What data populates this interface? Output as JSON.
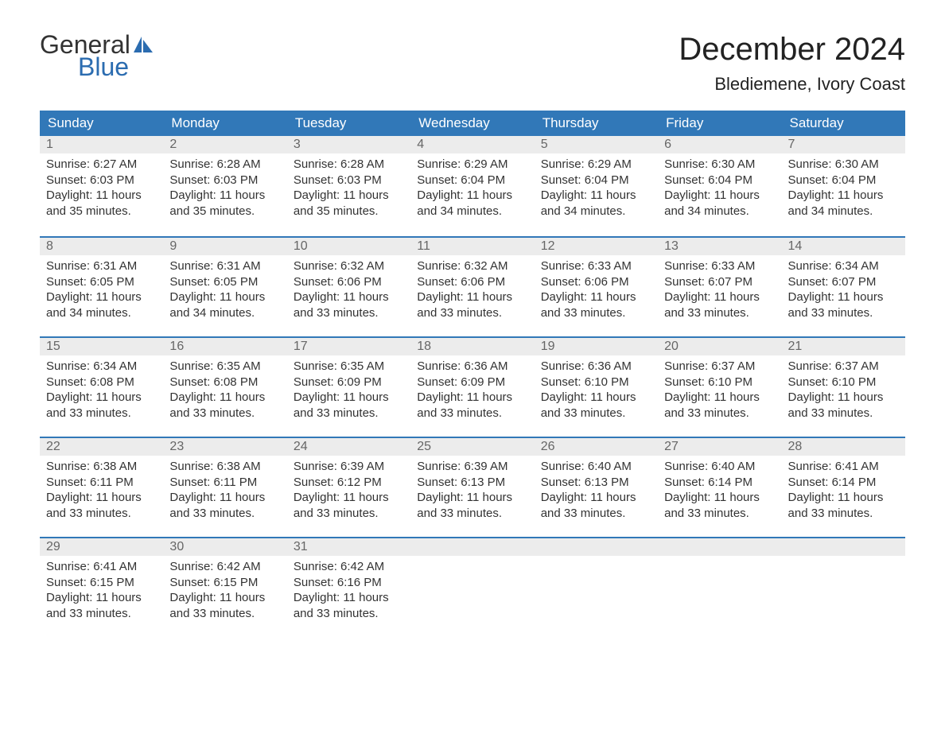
{
  "logo": {
    "text_general": "General",
    "text_blue": "Blue",
    "icon_color": "#2b6cb0"
  },
  "header": {
    "month_title": "December 2024",
    "location": "Blediemene, Ivory Coast"
  },
  "colors": {
    "header_bg": "#3178b8",
    "header_text": "#ffffff",
    "day_bar_bg": "#ececec",
    "day_bar_border": "#3178b8",
    "text": "#333333",
    "day_num": "#666666",
    "page_bg": "#ffffff"
  },
  "weekdays": [
    "Sunday",
    "Monday",
    "Tuesday",
    "Wednesday",
    "Thursday",
    "Friday",
    "Saturday"
  ],
  "days": [
    {
      "n": "1",
      "sunrise": "6:27 AM",
      "sunset": "6:03 PM",
      "daylight": "11 hours and 35 minutes."
    },
    {
      "n": "2",
      "sunrise": "6:28 AM",
      "sunset": "6:03 PM",
      "daylight": "11 hours and 35 minutes."
    },
    {
      "n": "3",
      "sunrise": "6:28 AM",
      "sunset": "6:03 PM",
      "daylight": "11 hours and 35 minutes."
    },
    {
      "n": "4",
      "sunrise": "6:29 AM",
      "sunset": "6:04 PM",
      "daylight": "11 hours and 34 minutes."
    },
    {
      "n": "5",
      "sunrise": "6:29 AM",
      "sunset": "6:04 PM",
      "daylight": "11 hours and 34 minutes."
    },
    {
      "n": "6",
      "sunrise": "6:30 AM",
      "sunset": "6:04 PM",
      "daylight": "11 hours and 34 minutes."
    },
    {
      "n": "7",
      "sunrise": "6:30 AM",
      "sunset": "6:04 PM",
      "daylight": "11 hours and 34 minutes."
    },
    {
      "n": "8",
      "sunrise": "6:31 AM",
      "sunset": "6:05 PM",
      "daylight": "11 hours and 34 minutes."
    },
    {
      "n": "9",
      "sunrise": "6:31 AM",
      "sunset": "6:05 PM",
      "daylight": "11 hours and 34 minutes."
    },
    {
      "n": "10",
      "sunrise": "6:32 AM",
      "sunset": "6:06 PM",
      "daylight": "11 hours and 33 minutes."
    },
    {
      "n": "11",
      "sunrise": "6:32 AM",
      "sunset": "6:06 PM",
      "daylight": "11 hours and 33 minutes."
    },
    {
      "n": "12",
      "sunrise": "6:33 AM",
      "sunset": "6:06 PM",
      "daylight": "11 hours and 33 minutes."
    },
    {
      "n": "13",
      "sunrise": "6:33 AM",
      "sunset": "6:07 PM",
      "daylight": "11 hours and 33 minutes."
    },
    {
      "n": "14",
      "sunrise": "6:34 AM",
      "sunset": "6:07 PM",
      "daylight": "11 hours and 33 minutes."
    },
    {
      "n": "15",
      "sunrise": "6:34 AM",
      "sunset": "6:08 PM",
      "daylight": "11 hours and 33 minutes."
    },
    {
      "n": "16",
      "sunrise": "6:35 AM",
      "sunset": "6:08 PM",
      "daylight": "11 hours and 33 minutes."
    },
    {
      "n": "17",
      "sunrise": "6:35 AM",
      "sunset": "6:09 PM",
      "daylight": "11 hours and 33 minutes."
    },
    {
      "n": "18",
      "sunrise": "6:36 AM",
      "sunset": "6:09 PM",
      "daylight": "11 hours and 33 minutes."
    },
    {
      "n": "19",
      "sunrise": "6:36 AM",
      "sunset": "6:10 PM",
      "daylight": "11 hours and 33 minutes."
    },
    {
      "n": "20",
      "sunrise": "6:37 AM",
      "sunset": "6:10 PM",
      "daylight": "11 hours and 33 minutes."
    },
    {
      "n": "21",
      "sunrise": "6:37 AM",
      "sunset": "6:10 PM",
      "daylight": "11 hours and 33 minutes."
    },
    {
      "n": "22",
      "sunrise": "6:38 AM",
      "sunset": "6:11 PM",
      "daylight": "11 hours and 33 minutes."
    },
    {
      "n": "23",
      "sunrise": "6:38 AM",
      "sunset": "6:11 PM",
      "daylight": "11 hours and 33 minutes."
    },
    {
      "n": "24",
      "sunrise": "6:39 AM",
      "sunset": "6:12 PM",
      "daylight": "11 hours and 33 minutes."
    },
    {
      "n": "25",
      "sunrise": "6:39 AM",
      "sunset": "6:13 PM",
      "daylight": "11 hours and 33 minutes."
    },
    {
      "n": "26",
      "sunrise": "6:40 AM",
      "sunset": "6:13 PM",
      "daylight": "11 hours and 33 minutes."
    },
    {
      "n": "27",
      "sunrise": "6:40 AM",
      "sunset": "6:14 PM",
      "daylight": "11 hours and 33 minutes."
    },
    {
      "n": "28",
      "sunrise": "6:41 AM",
      "sunset": "6:14 PM",
      "daylight": "11 hours and 33 minutes."
    },
    {
      "n": "29",
      "sunrise": "6:41 AM",
      "sunset": "6:15 PM",
      "daylight": "11 hours and 33 minutes."
    },
    {
      "n": "30",
      "sunrise": "6:42 AM",
      "sunset": "6:15 PM",
      "daylight": "11 hours and 33 minutes."
    },
    {
      "n": "31",
      "sunrise": "6:42 AM",
      "sunset": "6:16 PM",
      "daylight": "11 hours and 33 minutes."
    }
  ],
  "labels": {
    "sunrise": "Sunrise:",
    "sunset": "Sunset:",
    "daylight": "Daylight:"
  },
  "layout": {
    "start_offset": 0,
    "total_cells": 35
  }
}
